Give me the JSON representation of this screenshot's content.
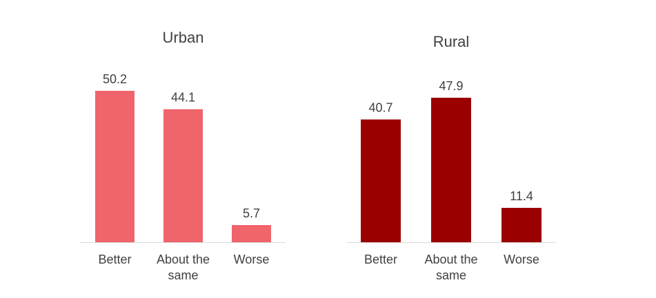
{
  "chart_data": [
    {
      "type": "bar",
      "title": "Urban",
      "categories": [
        "Better",
        "About the same",
        "Worse"
      ],
      "values": [
        50.2,
        44.1,
        5.7
      ],
      "color": "#F0646C",
      "ylim": [
        0,
        60
      ],
      "grid": false,
      "xlabel": "",
      "ylabel": ""
    },
    {
      "type": "bar",
      "title": "Rural",
      "categories": [
        "Better",
        "About the same",
        "Worse"
      ],
      "values": [
        40.7,
        47.9,
        11.4
      ],
      "color": "#9A0000",
      "ylim": [
        0,
        60
      ],
      "grid": false,
      "xlabel": "",
      "ylabel": ""
    }
  ]
}
